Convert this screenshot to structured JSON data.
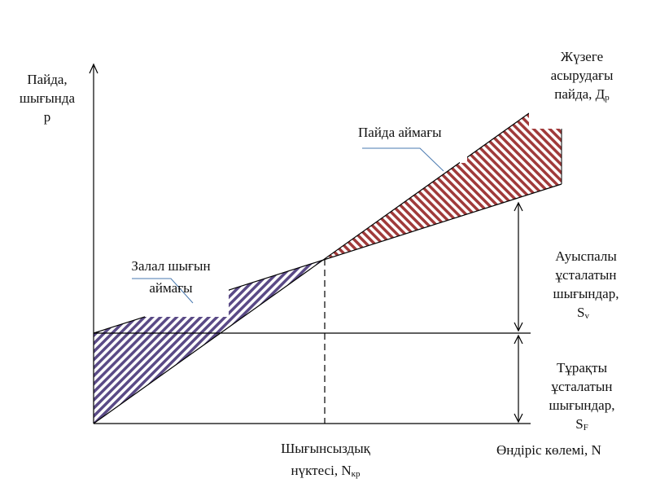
{
  "y_axis_label": {
    "line1": "Пайда,",
    "line2": "шығында",
    "line3": "р"
  },
  "x_axis_label": "Өндіріс көлемі, N",
  "break_even_label": {
    "line1": "Шығынсыздық",
    "line2": "нүктесі, N",
    "sub": "кр"
  },
  "revenue_label": {
    "line1": "Жүзеге",
    "line2": "асырудағы",
    "line3": "пайда, Д",
    "sub": "р"
  },
  "profit_zone_label": "Пайда аймағы",
  "loss_zone_label": {
    "line1": "Залал шығын",
    "line2": "аймағы"
  },
  "variable_costs_label": {
    "line1": "Ауыспалы",
    "line2": "ұсталатын",
    "line3": "шығындар,",
    "line4": "S",
    "sub": "v"
  },
  "fixed_costs_label": {
    "line1": "Тұрақты",
    "line2": "ұсталатын",
    "line3": "шығындар,",
    "line4": "S",
    "sub": "F"
  },
  "colors": {
    "loss_hatch": "#5a4a86",
    "profit_hatch": "#a03a3a",
    "line": "#000000",
    "leader": "#4a7ab0"
  }
}
